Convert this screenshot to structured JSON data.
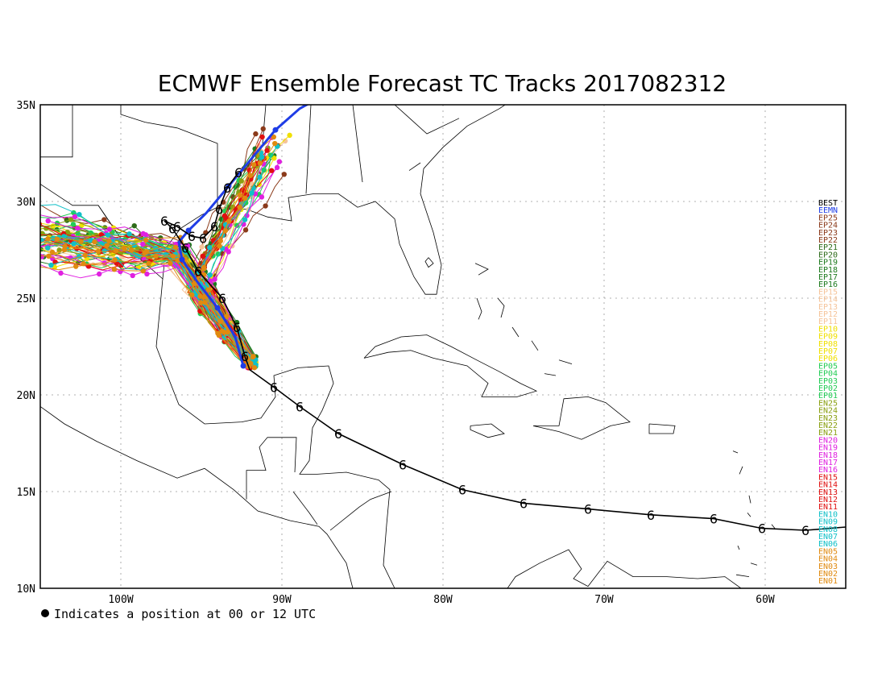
{
  "title": "ECMWF Ensemble Forecast TC Tracks 2017082312",
  "footnote": "Indicates a position at 00 or 12 UTC",
  "axes": {
    "lon_ticks": [
      "100W",
      "90W",
      "80W",
      "70W",
      "60W"
    ],
    "lat_ticks": [
      "10N",
      "15N",
      "20N",
      "25N",
      "30N",
      "35N"
    ]
  },
  "colors": {
    "best": "#000000",
    "eemn": "#1f3de6"
  },
  "legend": [
    {
      "label": "BEST",
      "color": "#000000"
    },
    {
      "label": "EEMN",
      "color": "#1f3de6"
    },
    {
      "label": "EP25",
      "color": "#8b3a1a"
    },
    {
      "label": "EP24",
      "color": "#8b3a1a"
    },
    {
      "label": "EP23",
      "color": "#8b3a1a"
    },
    {
      "label": "EP22",
      "color": "#8b3a1a"
    },
    {
      "label": "EP21",
      "color": "#2e6b1a"
    },
    {
      "label": "EP20",
      "color": "#2e6b1a"
    },
    {
      "label": "EP19",
      "color": "#1e7a1e"
    },
    {
      "label": "EP18",
      "color": "#1e7a1e"
    },
    {
      "label": "EP17",
      "color": "#1e7a1e"
    },
    {
      "label": "EP16",
      "color": "#1e7a1e"
    },
    {
      "label": "EP15",
      "color": "#f5c49a"
    },
    {
      "label": "EP14",
      "color": "#f5c49a"
    },
    {
      "label": "EP13",
      "color": "#f5c49a"
    },
    {
      "label": "EP12",
      "color": "#f5c49a"
    },
    {
      "label": "EP11",
      "color": "#f5c49a"
    },
    {
      "label": "EP10",
      "color": "#f0e000"
    },
    {
      "label": "EP09",
      "color": "#f0e000"
    },
    {
      "label": "EP08",
      "color": "#f0e000"
    },
    {
      "label": "EP07",
      "color": "#f0e000"
    },
    {
      "label": "EP06",
      "color": "#f0e000"
    },
    {
      "label": "EP05",
      "color": "#22cc55"
    },
    {
      "label": "EP04",
      "color": "#22cc55"
    },
    {
      "label": "EP03",
      "color": "#22cc55"
    },
    {
      "label": "EP02",
      "color": "#22cc55"
    },
    {
      "label": "EP01",
      "color": "#22cc55"
    },
    {
      "label": "EN25",
      "color": "#8aa012"
    },
    {
      "label": "EN24",
      "color": "#8aa012"
    },
    {
      "label": "EN23",
      "color": "#8aa012"
    },
    {
      "label": "EN22",
      "color": "#8aa012"
    },
    {
      "label": "EN21",
      "color": "#8aa012"
    },
    {
      "label": "EN20",
      "color": "#e020e0"
    },
    {
      "label": "EN19",
      "color": "#e020e0"
    },
    {
      "label": "EN18",
      "color": "#e020e0"
    },
    {
      "label": "EN17",
      "color": "#e020e0"
    },
    {
      "label": "EN16",
      "color": "#e020e0"
    },
    {
      "label": "EN15",
      "color": "#e01010"
    },
    {
      "label": "EN14",
      "color": "#e01010"
    },
    {
      "label": "EN13",
      "color": "#e01010"
    },
    {
      "label": "EN12",
      "color": "#e01010"
    },
    {
      "label": "EN11",
      "color": "#e01010"
    },
    {
      "label": "EN10",
      "color": "#10c0c8"
    },
    {
      "label": "EN09",
      "color": "#10c0c8"
    },
    {
      "label": "EN08",
      "color": "#10c0c8"
    },
    {
      "label": "EN07",
      "color": "#10c0c8"
    },
    {
      "label": "EN06",
      "color": "#10c0c8"
    },
    {
      "label": "EN05",
      "color": "#e08a10"
    },
    {
      "label": "EN04",
      "color": "#e08a10"
    },
    {
      "label": "EN03",
      "color": "#e08a10"
    },
    {
      "label": "EN02",
      "color": "#e08a10"
    },
    {
      "label": "EN01",
      "color": "#e08a10"
    }
  ],
  "best_track": [
    [
      -54.5,
      13.2
    ],
    [
      -57.5,
      13.0
    ],
    [
      -60.2,
      13.1
    ],
    [
      -63.2,
      13.6
    ],
    [
      -67.1,
      13.8
    ],
    [
      -71.0,
      14.1
    ],
    [
      -75.0,
      14.4
    ],
    [
      -78.8,
      15.1
    ],
    [
      -82.5,
      16.4
    ],
    [
      -86.5,
      18.0
    ],
    [
      -88.9,
      19.4
    ],
    [
      -90.5,
      20.4
    ],
    [
      -92.0,
      21.3
    ],
    [
      -92.3,
      22.0
    ],
    [
      -92.8,
      23.5
    ],
    [
      -93.7,
      25.0
    ],
    [
      -95.2,
      26.4
    ],
    [
      -96.0,
      27.6
    ],
    [
      -96.8,
      28.6
    ],
    [
      -97.3,
      29.0
    ],
    [
      -96.5,
      28.7
    ],
    [
      -95.6,
      28.2
    ],
    [
      -94.9,
      28.1
    ],
    [
      -94.2,
      28.7
    ],
    [
      -93.9,
      29.6
    ],
    [
      -93.4,
      30.7
    ],
    [
      -92.7,
      31.5
    ]
  ],
  "best_markers": [
    [
      -57.5,
      13.0
    ],
    [
      -60.2,
      13.1
    ],
    [
      -63.2,
      13.6
    ],
    [
      -67.1,
      13.8
    ],
    [
      -71.0,
      14.1
    ],
    [
      -75.0,
      14.4
    ],
    [
      -78.8,
      15.1
    ],
    [
      -82.5,
      16.4
    ],
    [
      -86.5,
      18.0
    ],
    [
      -88.9,
      19.4
    ],
    [
      -90.5,
      20.4
    ],
    [
      -92.3,
      22.0
    ],
    [
      -92.8,
      23.5
    ],
    [
      -93.7,
      25.0
    ],
    [
      -95.2,
      26.4
    ],
    [
      -96.0,
      27.6
    ],
    [
      -96.8,
      28.6
    ],
    [
      -97.3,
      29.0
    ],
    [
      -96.5,
      28.7
    ],
    [
      -95.6,
      28.2
    ],
    [
      -94.9,
      28.1
    ],
    [
      -94.2,
      28.7
    ],
    [
      -93.9,
      29.6
    ],
    [
      -93.4,
      30.7
    ],
    [
      -92.7,
      31.5
    ]
  ],
  "eemn_track": [
    [
      -92.4,
      21.5
    ],
    [
      -92.9,
      23.0
    ],
    [
      -94.0,
      24.5
    ],
    [
      -95.3,
      25.9
    ],
    [
      -96.2,
      27.0
    ],
    [
      -96.4,
      27.9
    ],
    [
      -95.8,
      28.5
    ],
    [
      -94.7,
      29.4
    ],
    [
      -93.3,
      30.8
    ],
    [
      -91.9,
      32.2
    ],
    [
      -90.4,
      33.7
    ],
    [
      -88.9,
      34.8
    ],
    [
      -87.8,
      35.3
    ]
  ],
  "ensemble_note": "EN01-EN25 and EP01-EP25"
}
